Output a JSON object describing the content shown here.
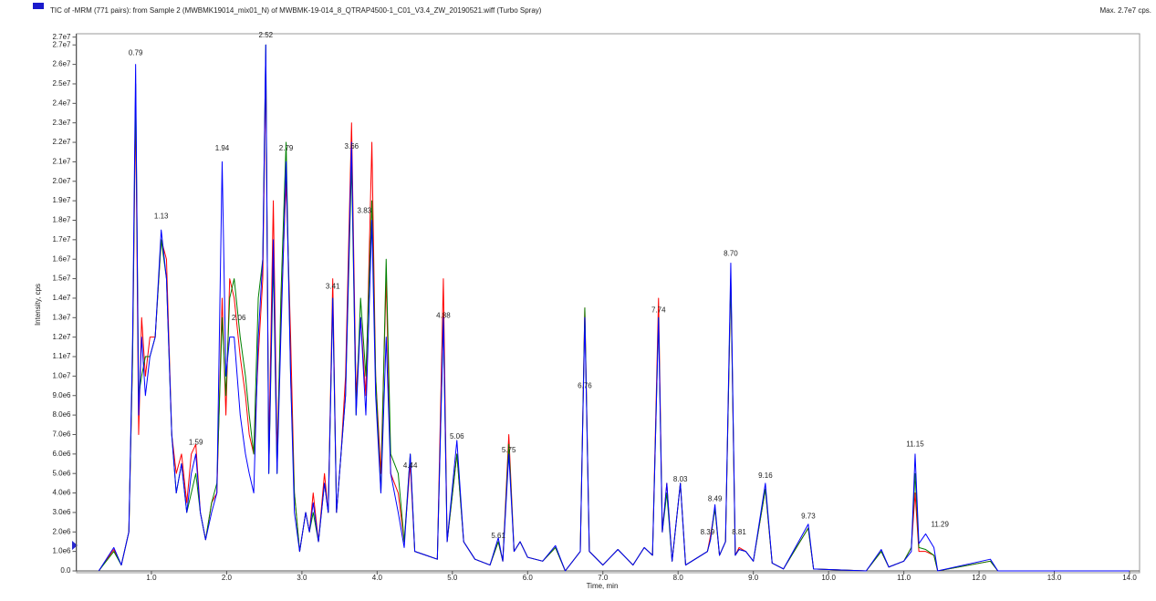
{
  "chart_data": {
    "type": "line",
    "title": "TIC of -MRM (771 pairs): from Sample 2 (MWBMK19014_mix01_N) of MWBMK-19-014_8_QTRAP4500-1_C01_V3.4_ZW_20190521.wiff (Turbo Spray)",
    "max_label": "Max. 2.7e7 cps.",
    "xlabel": "Time, min",
    "ylabel": "Intensity, cps",
    "xlim": [
      0,
      14
    ],
    "ylim": [
      0,
      27400000.0
    ],
    "xticks": [
      {
        "value": 1,
        "label": "1.0"
      },
      {
        "value": 2,
        "label": "2.0"
      },
      {
        "value": 3,
        "label": "3.0"
      },
      {
        "value": 4,
        "label": "4.0"
      },
      {
        "value": 5,
        "label": "5.0"
      },
      {
        "value": 6,
        "label": "6.0"
      },
      {
        "value": 7,
        "label": "7.0"
      },
      {
        "value": 8,
        "label": "8.0"
      },
      {
        "value": 9,
        "label": "9.0"
      },
      {
        "value": 10,
        "label": "10.0"
      },
      {
        "value": 11,
        "label": "11.0"
      },
      {
        "value": 12,
        "label": "12.0"
      },
      {
        "value": 13,
        "label": "13.0"
      },
      {
        "value": 14,
        "label": "14.0"
      }
    ],
    "yticks": [
      {
        "value": 0,
        "label": "0.0"
      },
      {
        "value": 1000000.0,
        "label": "1.0e6"
      },
      {
        "value": 2000000.0,
        "label": "2.0e6"
      },
      {
        "value": 3000000.0,
        "label": "3.0e6"
      },
      {
        "value": 4000000.0,
        "label": "4.0e6"
      },
      {
        "value": 5000000.0,
        "label": "5.0e6"
      },
      {
        "value": 6000000.0,
        "label": "6.0e6"
      },
      {
        "value": 7000000.0,
        "label": "7.0e6"
      },
      {
        "value": 8000000.0,
        "label": "8.0e6"
      },
      {
        "value": 9000000.0,
        "label": "9.0e6"
      },
      {
        "value": 10000000.0,
        "label": "1.0e7"
      },
      {
        "value": 11000000.0,
        "label": "1.1e7"
      },
      {
        "value": 12000000.0,
        "label": "1.2e7"
      },
      {
        "value": 13000000.0,
        "label": "1.3e7"
      },
      {
        "value": 14000000.0,
        "label": "1.4e7"
      },
      {
        "value": 15000000.0,
        "label": "1.5e7"
      },
      {
        "value": 16000000.0,
        "label": "1.6e7"
      },
      {
        "value": 17000000.0,
        "label": "1.7e7"
      },
      {
        "value": 18000000.0,
        "label": "1.8e7"
      },
      {
        "value": 19000000.0,
        "label": "1.9e7"
      },
      {
        "value": 20000000.0,
        "label": "2.0e7"
      },
      {
        "value": 21000000.0,
        "label": "2.1e7"
      },
      {
        "value": 22000000.0,
        "label": "2.2e7"
      },
      {
        "value": 23000000.0,
        "label": "2.3e7"
      },
      {
        "value": 24000000.0,
        "label": "2.4e7"
      },
      {
        "value": 25000000.0,
        "label": "2.5e7"
      },
      {
        "value": 26000000.0,
        "label": "2.6e7"
      },
      {
        "value": 27000000.0,
        "label": "2.7e7"
      },
      {
        "value": 27400000.0,
        "label": "2.7e7"
      }
    ],
    "x": [
      0.3,
      0.5,
      0.6,
      0.7,
      0.75,
      0.79,
      0.83,
      0.87,
      0.92,
      0.98,
      1.05,
      1.13,
      1.2,
      1.27,
      1.33,
      1.4,
      1.47,
      1.53,
      1.59,
      1.65,
      1.72,
      1.8,
      1.87,
      1.94,
      1.99,
      2.04,
      2.1,
      2.18,
      2.25,
      2.3,
      2.36,
      2.42,
      2.48,
      2.52,
      2.56,
      2.62,
      2.67,
      2.72,
      2.79,
      2.85,
      2.9,
      2.97,
      3.05,
      3.1,
      3.15,
      3.22,
      3.3,
      3.35,
      3.41,
      3.46,
      3.52,
      3.58,
      3.66,
      3.72,
      3.78,
      3.85,
      3.93,
      3.98,
      4.05,
      4.12,
      4.18,
      4.28,
      4.36,
      4.44,
      4.5,
      4.65,
      4.8,
      4.88,
      4.93,
      5.06,
      5.15,
      5.3,
      5.5,
      5.61,
      5.67,
      5.75,
      5.82,
      5.9,
      6.0,
      6.2,
      6.37,
      6.5,
      6.7,
      6.76,
      6.82,
      7.0,
      7.2,
      7.4,
      7.55,
      7.66,
      7.74,
      7.79,
      7.85,
      7.92,
      8.03,
      8.1,
      8.39,
      8.43,
      8.49,
      8.55,
      8.63,
      8.7,
      8.76,
      8.81,
      8.9,
      9.0,
      9.16,
      9.25,
      9.4,
      9.73,
      9.8,
      10.5,
      10.7,
      10.8,
      11.0,
      11.1,
      11.15,
      11.2,
      11.29,
      11.4,
      11.45,
      12.15,
      12.25,
      13.0,
      14.0
    ],
    "series": [
      {
        "color": "#ff0000",
        "values": [
          0,
          1100000.0,
          300000.0,
          2000000.0,
          11000000.0,
          24000000.0,
          7000000.0,
          13000000.0,
          10000000.0,
          12000000.0,
          12000000.0,
          17000000.0,
          16000000.0,
          7000000.0,
          5000000.0,
          6000000.0,
          3500000.0,
          6000000.0,
          6500000.0,
          3000000.0,
          1600000.0,
          3500000.0,
          4000000.0,
          14000000.0,
          8000000.0,
          15000000.0,
          14000000.0,
          11000000.0,
          9000000.0,
          7000000.0,
          6000000.0,
          11000000.0,
          15000000.0,
          26000000.0,
          6000000.0,
          19000000.0,
          6000000.0,
          13000000.0,
          20000000.0,
          12000000.0,
          4000000.0,
          1000000.0,
          3000000.0,
          2000000.0,
          4000000.0,
          1500000.0,
          5000000.0,
          3000000.0,
          15000000.0,
          3000000.0,
          6000000.0,
          10000000.0,
          23000000.0,
          9000000.0,
          13000000.0,
          9000000.0,
          22000000.0,
          10000000.0,
          5000000.0,
          15000000.0,
          5000000.0,
          4000000.0,
          1500000.0,
          5500000.0,
          1000000.0,
          800000.0,
          600000.0,
          15000000.0,
          1500000.0,
          6000000.0,
          1500000.0,
          600000.0,
          300000.0,
          1500000.0,
          500000.0,
          7000000.0,
          1000000.0,
          1500000.0,
          700000.0,
          500000.0,
          1200000.0,
          0,
          1000000.0,
          13500000.0,
          1000000.0,
          300000.0,
          1100000.0,
          300000.0,
          1200000.0,
          800000.0,
          14000000.0,
          2000000.0,
          4500000.0,
          500000.0,
          4500000.0,
          300000.0,
          1000000.0,
          1800000.0,
          3200000.0,
          800000.0,
          1500000.0,
          15000000.0,
          800000.0,
          1200000.0,
          1000000.0,
          500000.0,
          4200000.0,
          400000.0,
          100000.0,
          2200000.0,
          100000.0,
          0,
          1000000.0,
          200000.0,
          500000.0,
          1200000.0,
          4000000.0,
          1000000.0,
          1000000.0,
          800000.0,
          0,
          500000.0,
          0,
          0,
          0
        ]
      },
      {
        "color": "#008000",
        "values": [
          0,
          1000000.0,
          300000.0,
          2000000.0,
          11000000.0,
          25000000.0,
          9000000.0,
          10000000.0,
          11000000.0,
          11000000.0,
          12000000.0,
          17000000.0,
          15000000.0,
          7000000.0,
          4000000.0,
          5500000.0,
          3000000.0,
          4000000.0,
          5000000.0,
          3000000.0,
          1600000.0,
          3500000.0,
          4500000.0,
          13000000.0,
          9000000.0,
          14000000.0,
          15000000.0,
          12000000.0,
          10000000.0,
          8000000.0,
          6000000.0,
          14000000.0,
          16000000.0,
          27000000.0,
          5000000.0,
          16000000.0,
          5000000.0,
          14000000.0,
          22000000.0,
          10000000.0,
          4000000.0,
          1000000.0,
          3000000.0,
          2000000.0,
          3000000.0,
          1500000.0,
          4500000.0,
          3000000.0,
          14000000.0,
          3000000.0,
          6000000.0,
          9000000.0,
          21000000.0,
          8000000.0,
          14000000.0,
          10000000.0,
          19000000.0,
          10000000.0,
          4000000.0,
          16000000.0,
          6000000.0,
          5000000.0,
          1500000.0,
          6000000.0,
          1000000.0,
          800000.0,
          600000.0,
          13000000.0,
          1500000.0,
          6000000.0,
          1500000.0,
          600000.0,
          300000.0,
          1500000.0,
          500000.0,
          6500000.0,
          1000000.0,
          1500000.0,
          700000.0,
          500000.0,
          1200000.0,
          0,
          1000000.0,
          13500000.0,
          1000000.0,
          300000.0,
          1100000.0,
          300000.0,
          1200000.0,
          800000.0,
          13000000.0,
          2000000.0,
          4000000.0,
          500000.0,
          4500000.0,
          300000.0,
          1000000.0,
          1600000.0,
          3200000.0,
          800000.0,
          1500000.0,
          15000000.0,
          800000.0,
          1100000.0,
          1000000.0,
          500000.0,
          4200000.0,
          400000.0,
          100000.0,
          2200000.0,
          100000.0,
          0,
          1000000.0,
          200000.0,
          500000.0,
          1200000.0,
          5000000.0,
          1200000.0,
          1100000.0,
          800000.0,
          0,
          500000.0,
          0,
          0,
          0
        ]
      },
      {
        "color": "#0000ff",
        "values": [
          0,
          1200000.0,
          300000.0,
          2000000.0,
          12000000.0,
          26000000.0,
          8000000.0,
          12000000.0,
          9000000.0,
          11000000.0,
          12000000.0,
          17500000.0,
          15000000.0,
          7000000.0,
          4000000.0,
          5500000.0,
          3000000.0,
          5000000.0,
          6000000.0,
          3000000.0,
          1600000.0,
          3000000.0,
          4000000.0,
          21000000.0,
          10000000.0,
          12000000.0,
          12000000.0,
          8000000.0,
          6000000.0,
          5000000.0,
          4000000.0,
          12000000.0,
          16000000.0,
          27000000.0,
          5000000.0,
          17000000.0,
          5000000.0,
          12000000.0,
          21000000.0,
          10000000.0,
          3000000.0,
          1000000.0,
          3000000.0,
          2000000.0,
          3500000.0,
          1500000.0,
          4500000.0,
          3000000.0,
          14000000.0,
          3000000.0,
          6000000.0,
          9000000.0,
          22000000.0,
          8000000.0,
          13000000.0,
          8000000.0,
          18000000.0,
          9000000.0,
          4000000.0,
          12000000.0,
          5000000.0,
          3000000.0,
          1200000.0,
          6000000.0,
          1000000.0,
          800000.0,
          600000.0,
          13000000.0,
          1500000.0,
          6700000.0,
          1500000.0,
          600000.0,
          300000.0,
          1700000.0,
          500000.0,
          6000000.0,
          1000000.0,
          1500000.0,
          700000.0,
          500000.0,
          1300000.0,
          0,
          1000000.0,
          13000000.0,
          1000000.0,
          300000.0,
          1100000.0,
          300000.0,
          1200000.0,
          800000.0,
          13000000.0,
          2000000.0,
          4500000.0,
          500000.0,
          4500000.0,
          300000.0,
          1000000.0,
          1600000.0,
          3400000.0,
          800000.0,
          1500000.0,
          15800000.0,
          800000.0,
          1100000.0,
          1000000.0,
          500000.0,
          4500000.0,
          400000.0,
          100000.0,
          2400000.0,
          100000.0,
          0,
          1100000.0,
          200000.0,
          500000.0,
          1000000.0,
          6000000.0,
          1400000.0,
          1900000.0,
          1200000.0,
          0,
          600000.0,
          0,
          0,
          0
        ]
      }
    ],
    "annotations": [
      {
        "text": "0.79",
        "x": 0.79,
        "y": 26300000.0
      },
      {
        "text": "1.13",
        "x": 1.13,
        "y": 17900000.0
      },
      {
        "text": "1.59",
        "x": 1.59,
        "y": 6300000.0
      },
      {
        "text": "1.94",
        "x": 1.94,
        "y": 21400000.0
      },
      {
        "text": "2.06",
        "x": 2.16,
        "y": 12700000.0
      },
      {
        "text": "2.52",
        "x": 2.52,
        "y": 27200000.0
      },
      {
        "text": "2.79",
        "x": 2.79,
        "y": 21400000.0
      },
      {
        "text": "3.41",
        "x": 3.41,
        "y": 14300000.0
      },
      {
        "text": "3.66",
        "x": 3.66,
        "y": 21500000.0
      },
      {
        "text": "3.83",
        "x": 3.83,
        "y": 18200000.0
      },
      {
        "text": "4.44",
        "x": 4.44,
        "y": 5100000.0
      },
      {
        "text": "4.88",
        "x": 4.88,
        "y": 12800000.0
      },
      {
        "text": "5.06",
        "x": 5.06,
        "y": 6600000.0
      },
      {
        "text": "5.61",
        "x": 5.61,
        "y": 1500000.0
      },
      {
        "text": "5.75",
        "x": 5.75,
        "y": 5900000.0
      },
      {
        "text": "6.76",
        "x": 6.76,
        "y": 9200000.0
      },
      {
        "text": "7.74",
        "x": 7.74,
        "y": 13100000.0
      },
      {
        "text": "8.03",
        "x": 8.03,
        "y": 4400000.0
      },
      {
        "text": "8.39",
        "x": 8.39,
        "y": 1700000.0
      },
      {
        "text": "8.49",
        "x": 8.49,
        "y": 3400000.0
      },
      {
        "text": "8.70",
        "x": 8.7,
        "y": 16000000.0
      },
      {
        "text": "8.81",
        "x": 8.81,
        "y": 1700000.0
      },
      {
        "text": "9.16",
        "x": 9.16,
        "y": 4600000.0
      },
      {
        "text": "9.73",
        "x": 9.73,
        "y": 2500000.0
      },
      {
        "text": "11.15",
        "x": 11.15,
        "y": 6200000.0
      },
      {
        "text": "11.29",
        "x": 11.48,
        "y": 2100000.0
      }
    ]
  }
}
